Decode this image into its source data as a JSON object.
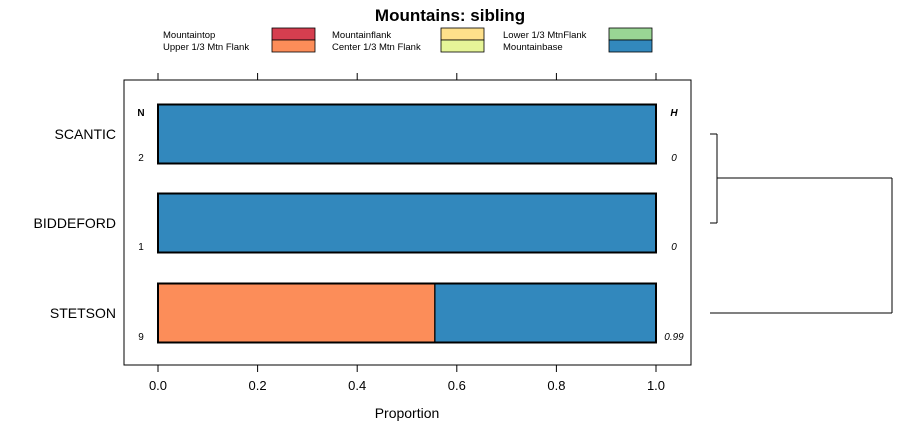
{
  "chart_data": {
    "type": "bar",
    "stacked": true,
    "orientation": "horizontal",
    "title": "Mountains: sibling",
    "xlabel": "Proportion",
    "ylabel": "",
    "xlim": [
      0,
      1
    ],
    "x_ticks": [
      "0.0",
      "0.2",
      "0.4",
      "0.6",
      "0.8",
      "1.0"
    ],
    "x_tick_values": [
      0,
      0.2,
      0.4,
      0.6,
      0.8,
      1.0
    ],
    "legend_placement": "top",
    "legend": [
      {
        "name": "Mountaintop",
        "color": "#d53e4f"
      },
      {
        "name": "Upper 1/3 Mtn Flank",
        "color": "#fc8d59"
      },
      {
        "name": "Mountainflank",
        "color": "#fee08b"
      },
      {
        "name": "Center 1/3 Mtn Flank",
        "color": "#e6f598"
      },
      {
        "name": "Lower 1/3 MtnFlank",
        "color": "#99d594"
      },
      {
        "name": "Mountainbase",
        "color": "#3288bd"
      }
    ],
    "n_header": "N",
    "h_header": "H",
    "categories": [
      "SCANTIC",
      "BIDDEFORD",
      "STETSON"
    ],
    "n_values": [
      "2",
      "1",
      "9"
    ],
    "h_values": [
      "0",
      "0",
      "0.99"
    ],
    "series": [
      {
        "name": "Mountaintop",
        "color": "#d53e4f",
        "values": [
          0,
          0,
          0
        ]
      },
      {
        "name": "Upper 1/3 Mtn Flank",
        "color": "#fc8d59",
        "values": [
          0,
          0,
          0.556
        ]
      },
      {
        "name": "Mountainflank",
        "color": "#fee08b",
        "values": [
          0,
          0,
          0
        ]
      },
      {
        "name": "Center 1/3 Mtn Flank",
        "color": "#e6f598",
        "values": [
          0,
          0,
          0
        ]
      },
      {
        "name": "Lower 1/3 MtnFlank",
        "color": "#99d594",
        "values": [
          0,
          0,
          0
        ]
      },
      {
        "name": "Mountainbase",
        "color": "#3288bd",
        "values": [
          1,
          1,
          0.444
        ]
      }
    ],
    "dendrogram": "((SCANTIC,BIDDEFORD),STETSON)"
  }
}
